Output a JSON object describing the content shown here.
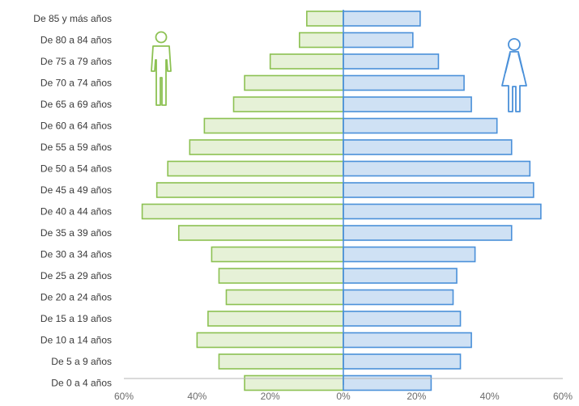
{
  "chart_data": {
    "type": "bar",
    "orientation": "horizontal",
    "layout": "population-pyramid",
    "categories": [
      "De 85 y más años",
      "De 80 a 84 años",
      "De 75 a 79 años",
      "De 70 a 74 años",
      "De 65 a 69 años",
      "De 60 a 64 años",
      "De 55 a 59 años",
      "De 50 a 54 años",
      "De 45 a 49 años",
      "De 40 a 44 años",
      "De 35 a 39 años",
      "De 30 a 34 años",
      "De 25 a 29 años",
      "De 20 a 24 años",
      "De 15 a 19 años",
      "De 10 a 14 años",
      "De 5 a 9 años",
      "De 0 a 4 años"
    ],
    "series": [
      {
        "side": "left",
        "icon": "male-figure-icon",
        "color": "#8cc152",
        "fill": "#e6f1d7",
        "values": [
          10,
          12,
          20,
          27,
          30,
          38,
          42,
          48,
          51,
          55,
          45,
          36,
          34,
          32,
          37,
          40,
          34,
          27
        ]
      },
      {
        "side": "right",
        "icon": "female-figure-icon",
        "color": "#4a90d9",
        "fill": "#cfe1f4",
        "values": [
          21,
          19,
          26,
          33,
          35,
          42,
          46,
          51,
          52,
          54,
          46,
          36,
          31,
          30,
          32,
          35,
          32,
          24
        ]
      }
    ],
    "x_ticks": [
      "60%",
      "40%",
      "20%",
      "0%",
      "20%",
      "40%",
      "60%"
    ],
    "xlim": [
      -60,
      60
    ],
    "grid": false,
    "legend": "none"
  }
}
